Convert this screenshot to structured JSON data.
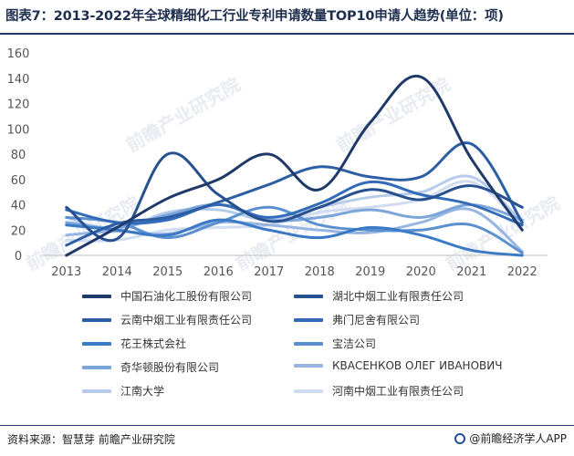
{
  "title": "图表7：2013-2022年全球精细化工行业专利申请数量TOP10申请人趋势(单位：项)",
  "source": "资料来源：智慧芽 前瞻产业研究院",
  "brand": "@前瞻经济学人APP",
  "watermark": "前瞻产业研究院",
  "chart_data": {
    "type": "line",
    "x": [
      "2013",
      "2014",
      "2015",
      "2016",
      "2017",
      "2018",
      "2019",
      "2020",
      "2021",
      "2022"
    ],
    "ylim": [
      0,
      160
    ],
    "yticks": [
      "0",
      "20",
      "40",
      "60",
      "80",
      "100",
      "120",
      "140",
      "160"
    ],
    "series": [
      {
        "name": "中国石油化工股份有限公司",
        "color": "#1f3a6a",
        "values": [
          0,
          22,
          45,
          60,
          80,
          52,
          105,
          141,
          76,
          20
        ]
      },
      {
        "name": "湖北中烟工业有限责任公司",
        "color": "#27508f",
        "values": [
          38,
          13,
          80,
          48,
          27,
          38,
          52,
          44,
          55,
          38
        ]
      },
      {
        "name": "云南中烟工业有限责任公司",
        "color": "#2c5ea5",
        "values": [
          8,
          25,
          30,
          42,
          56,
          70,
          62,
          62,
          88,
          26
        ]
      },
      {
        "name": "弗门尼舍有限公司",
        "color": "#336bb8",
        "values": [
          36,
          26,
          28,
          40,
          30,
          41,
          58,
          48,
          40,
          24
        ]
      },
      {
        "name": "花王株式会社",
        "color": "#3a79c6",
        "values": [
          24,
          20,
          16,
          28,
          20,
          14,
          22,
          16,
          4,
          0
        ]
      },
      {
        "name": "宝洁公司",
        "color": "#5a8fd0",
        "values": [
          30,
          26,
          14,
          26,
          38,
          24,
          20,
          20,
          24,
          2
        ]
      },
      {
        "name": "奇华顿股份有限公司",
        "color": "#7ca6da",
        "values": [
          26,
          22,
          32,
          40,
          28,
          30,
          36,
          30,
          40,
          28
        ]
      },
      {
        "name": "КВАСЕНКОВ ОЛЕГ ИВАНОВИЧ",
        "color": "#97b5e2",
        "values": [
          16,
          19,
          17,
          26,
          24,
          20,
          18,
          26,
          36,
          3
        ]
      },
      {
        "name": "江南大学",
        "color": "#b6ccea",
        "values": [
          30,
          20,
          34,
          36,
          28,
          38,
          46,
          50,
          62,
          26
        ]
      },
      {
        "name": "河南中烟工业有限责任公司",
        "color": "#cfdcf1",
        "values": [
          12,
          12,
          20,
          22,
          24,
          34,
          38,
          44,
          58,
          24
        ]
      }
    ]
  }
}
